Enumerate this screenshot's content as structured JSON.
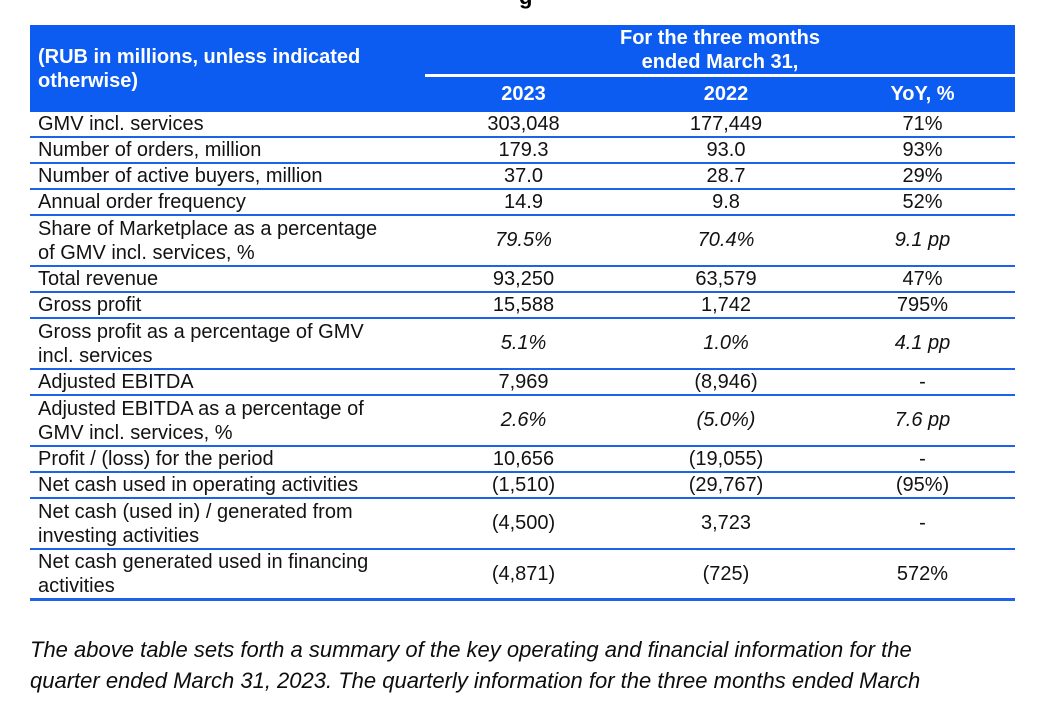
{
  "page": {
    "top_fragment": "g",
    "footnote": "The above table sets forth a summary of the key operating and financial information for the\nquarter ended March 31, 2023. The quarterly information for the three months ended March"
  },
  "colors": {
    "header_bg": "#0c5cf2",
    "rule_line": "#1e62e9",
    "text": "#121212"
  },
  "table": {
    "corner_header": "(RUB in millions, unless indicated\notherwise)",
    "period_header": "For the three months\nended March 31,",
    "columns": [
      "2023",
      "2022",
      "YoY, %"
    ],
    "rows": [
      {
        "label": "GMV incl. services",
        "y2023": "303,048",
        "y2022": "177,449",
        "yoy": "71%"
      },
      {
        "label": "Number of orders, million",
        "y2023": "179.3",
        "y2022": "93.0",
        "yoy": "93%"
      },
      {
        "label": "Number of active buyers, million",
        "y2023": "37.0",
        "y2022": "28.7",
        "yoy": "29%"
      },
      {
        "label": "Annual order frequency",
        "y2023": "14.9",
        "y2022": "9.8",
        "yoy": "52%"
      },
      {
        "label": "Share of Marketplace as a percentage\nof GMV incl. services, %",
        "y2023": "79.5%",
        "y2022": "70.4%",
        "yoy": "9.1 pp"
      },
      {
        "label": "Total revenue",
        "y2023": "93,250",
        "y2022": "63,579",
        "yoy": "47%"
      },
      {
        "label": "Gross profit",
        "y2023": "15,588",
        "y2022": "1,742",
        "yoy": "795%"
      },
      {
        "label": "Gross profit as a percentage of GMV\nincl. services",
        "y2023": "5.1%",
        "y2022": "1.0%",
        "yoy": "4.1 pp"
      },
      {
        "label": "Adjusted EBITDA",
        "y2023": "7,969",
        "y2022": "(8,946)",
        "yoy": "-"
      },
      {
        "label": "Adjusted EBITDA as a percentage of\nGMV incl. services, %",
        "y2023": "2.6%",
        "y2022": "(5.0%)",
        "yoy": "7.6 pp"
      },
      {
        "label": "Profit / (loss) for the period",
        "y2023": "10,656",
        "y2022": "(19,055)",
        "yoy": "-"
      },
      {
        "label": "Net cash used in operating activities",
        "y2023": "(1,510)",
        "y2022": "(29,767)",
        "yoy": "(95%)"
      },
      {
        "label": "Net cash (used in) / generated from\ninvesting activities",
        "y2023": "(4,500)",
        "y2022": "3,723",
        "yoy": "-"
      },
      {
        "label": "Net cash generated used in financing\nactivities",
        "y2023": "(4,871)",
        "y2022": "(725)",
        "yoy": "572%"
      }
    ]
  }
}
